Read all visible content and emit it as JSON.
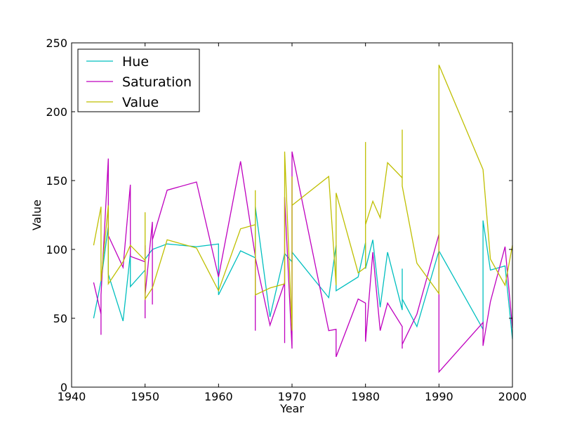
{
  "chart_data": {
    "type": "line",
    "title": "",
    "xlabel": "Year",
    "ylabel": "Value",
    "xlim": [
      1940,
      2000
    ],
    "ylim": [
      0,
      250
    ],
    "xticks": [
      1940,
      1950,
      1960,
      1970,
      1980,
      1990,
      2000
    ],
    "yticks": [
      0,
      50,
      100,
      150,
      200,
      250
    ],
    "xtick_labels": [
      "1940",
      "1950",
      "1960",
      "1970",
      "1980",
      "1990",
      "2000"
    ],
    "ytick_labels": [
      "0",
      "50",
      "100",
      "150",
      "200",
      "250"
    ],
    "grid": false,
    "legend_position": "top-left",
    "series": [
      {
        "name": "Hue",
        "color": "#00bfbf",
        "points": [
          [
            1943,
            50
          ],
          [
            1944,
            77
          ],
          [
            1945,
            117
          ],
          [
            1945,
            82
          ],
          [
            1947,
            48
          ],
          [
            1948,
            97
          ],
          [
            1948,
            73
          ],
          [
            1950,
            85
          ],
          [
            1950,
            93
          ],
          [
            1951,
            100
          ],
          [
            1953,
            104
          ],
          [
            1957,
            102
          ],
          [
            1960,
            104
          ],
          [
            1960,
            67
          ],
          [
            1963,
            99
          ],
          [
            1965,
            94
          ],
          [
            1965,
            131
          ],
          [
            1967,
            51
          ],
          [
            1969,
            97
          ],
          [
            1970,
            91
          ],
          [
            1970,
            98
          ],
          [
            1975,
            65
          ],
          [
            1976,
            103
          ],
          [
            1976,
            70
          ],
          [
            1979,
            80
          ],
          [
            1980,
            105
          ],
          [
            1980,
            86
          ],
          [
            1981,
            107
          ],
          [
            1982,
            58
          ],
          [
            1983,
            98
          ],
          [
            1985,
            56
          ],
          [
            1985,
            86
          ],
          [
            1985,
            64
          ],
          [
            1987,
            44
          ],
          [
            1990,
            99
          ],
          [
            1996,
            42
          ],
          [
            1996,
            121
          ],
          [
            1997,
            85
          ],
          [
            1999,
            88
          ],
          [
            2000,
            35
          ]
        ]
      },
      {
        "name": "Saturation",
        "color": "#bf00bf",
        "points": [
          [
            1943,
            76
          ],
          [
            1944,
            53
          ],
          [
            1944,
            38
          ],
          [
            1944,
            67
          ],
          [
            1945,
            166
          ],
          [
            1945,
            110
          ],
          [
            1947,
            87
          ],
          [
            1948,
            147
          ],
          [
            1948,
            95
          ],
          [
            1950,
            91
          ],
          [
            1950,
            50
          ],
          [
            1950,
            103
          ],
          [
            1950,
            67
          ],
          [
            1951,
            120
          ],
          [
            1951,
            60
          ],
          [
            1951,
            107
          ],
          [
            1953,
            143
          ],
          [
            1957,
            149
          ],
          [
            1960,
            80
          ],
          [
            1963,
            164
          ],
          [
            1965,
            95
          ],
          [
            1965,
            41
          ],
          [
            1965,
            94
          ],
          [
            1967,
            45
          ],
          [
            1969,
            76
          ],
          [
            1969,
            32
          ],
          [
            1969,
            138
          ],
          [
            1970,
            28
          ],
          [
            1970,
            171
          ],
          [
            1975,
            41
          ],
          [
            1976,
            42
          ],
          [
            1976,
            22
          ],
          [
            1979,
            64
          ],
          [
            1980,
            61
          ],
          [
            1980,
            33
          ],
          [
            1981,
            98
          ],
          [
            1982,
            41
          ],
          [
            1983,
            61
          ],
          [
            1985,
            44
          ],
          [
            1985,
            28
          ],
          [
            1985,
            31
          ],
          [
            1987,
            53
          ],
          [
            1990,
            111
          ],
          [
            1990,
            11
          ],
          [
            1996,
            47
          ],
          [
            1996,
            30
          ],
          [
            1997,
            62
          ],
          [
            1999,
            102
          ],
          [
            2000,
            43
          ]
        ]
      },
      {
        "name": "Value",
        "color": "#bfbf00",
        "points": [
          [
            1943,
            103
          ],
          [
            1944,
            131
          ],
          [
            1944,
            77
          ],
          [
            1945,
            132
          ],
          [
            1945,
            75
          ],
          [
            1947,
            91
          ],
          [
            1948,
            103
          ],
          [
            1950,
            92
          ],
          [
            1950,
            127
          ],
          [
            1950,
            64
          ],
          [
            1951,
            72
          ],
          [
            1953,
            107
          ],
          [
            1957,
            101
          ],
          [
            1960,
            70
          ],
          [
            1963,
            115
          ],
          [
            1965,
            118
          ],
          [
            1965,
            143
          ],
          [
            1965,
            67
          ],
          [
            1967,
            72
          ],
          [
            1969,
            75
          ],
          [
            1969,
            171
          ],
          [
            1970,
            41
          ],
          [
            1970,
            153
          ],
          [
            1970,
            132
          ],
          [
            1975,
            153
          ],
          [
            1976,
            74
          ],
          [
            1976,
            141
          ],
          [
            1979,
            83
          ],
          [
            1980,
            87
          ],
          [
            1980,
            178
          ],
          [
            1980,
            118
          ],
          [
            1981,
            135
          ],
          [
            1982,
            123
          ],
          [
            1983,
            163
          ],
          [
            1985,
            152
          ],
          [
            1985,
            187
          ],
          [
            1985,
            146
          ],
          [
            1987,
            90
          ],
          [
            1990,
            68
          ],
          [
            1990,
            234
          ],
          [
            1996,
            158
          ],
          [
            1997,
            93
          ],
          [
            1999,
            74
          ],
          [
            2000,
            103
          ]
        ]
      }
    ]
  }
}
